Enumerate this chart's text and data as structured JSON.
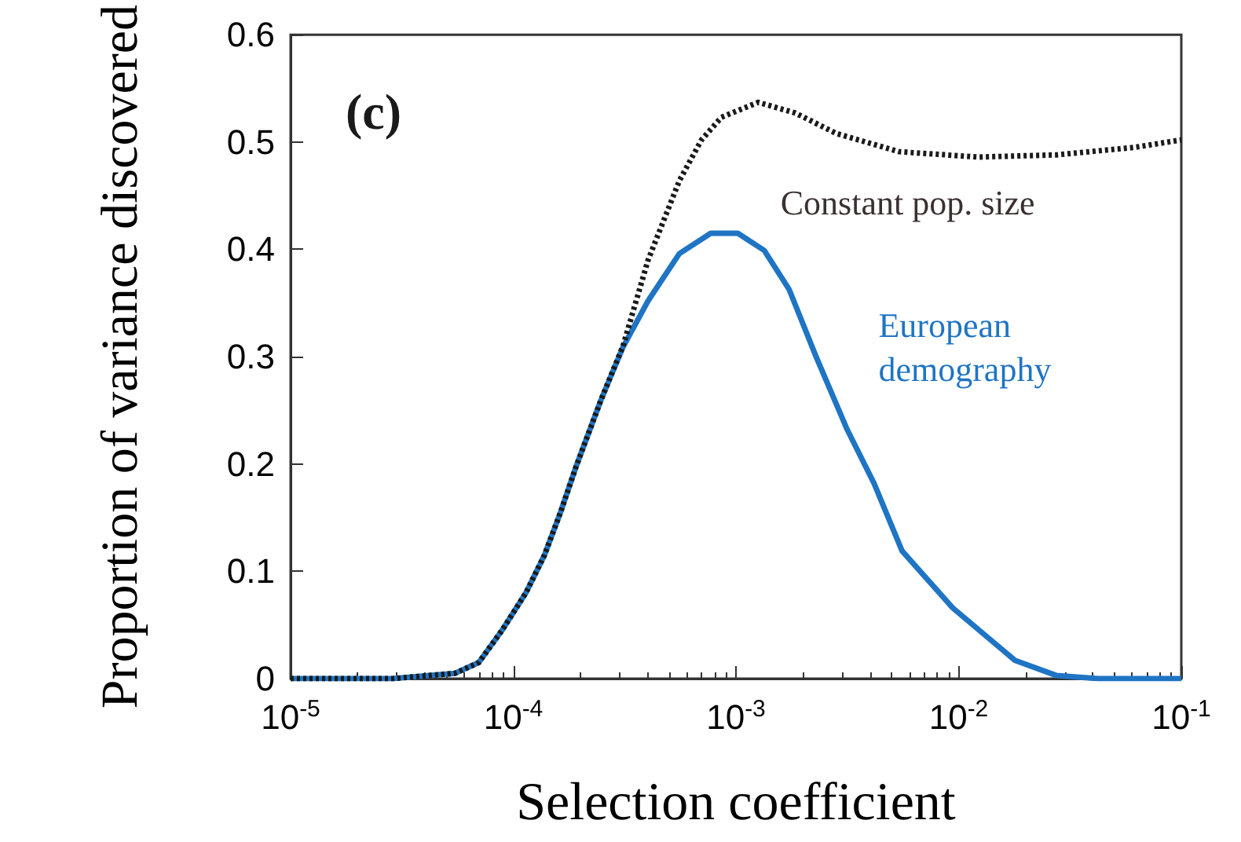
{
  "chart_data": {
    "type": "line",
    "xlabel": "Selection coefficient",
    "ylabel": "Proportion of variance discovered",
    "annotations": [
      "(c)"
    ],
    "log": "x",
    "xlim": [
      1e-05,
      0.1
    ],
    "ylim": [
      0,
      0.6
    ],
    "xticks": [
      {
        "value": 1e-05,
        "label": "10$^{-5}$"
      },
      {
        "value": 0.0001,
        "label": "10$^{-4}$"
      },
      {
        "value": 0.001,
        "label": "10$^{-3}$"
      },
      {
        "value": 0.01,
        "label": "10$^{-2}$"
      },
      {
        "value": 0.1,
        "label": "10$^{-1}$"
      }
    ],
    "yticks": [
      0,
      0.1,
      0.2,
      0.3,
      0.4,
      0.5,
      0.6
    ],
    "grid": false,
    "marker": "none",
    "series": [
      {
        "name": "Constant pop. size",
        "color": "#1a1a1a",
        "line_style": "dotted",
        "x": [
          1e-05,
          2.87e-05,
          5.48e-05,
          7e-05,
          8.9e-05,
          0.000114,
          0.000138,
          0.000163,
          0.000191,
          0.000248,
          0.000311,
          0.000403,
          0.000557,
          0.0007,
          0.00086,
          0.00126,
          0.00185,
          0.00282,
          0.0054,
          0.0122,
          0.0274,
          0.0615,
          0.1
        ],
        "values": [
          0,
          0,
          0.005,
          0.015,
          0.045,
          0.08,
          0.115,
          0.155,
          0.197,
          0.26,
          0.31,
          0.39,
          0.464,
          0.502,
          0.523,
          0.537,
          0.527,
          0.508,
          0.491,
          0.486,
          0.488,
          0.495,
          0.502
        ]
      },
      {
        "name": "European demography",
        "color": "#1f74c4",
        "line_style": "solid",
        "x": [
          1e-05,
          2.87e-05,
          5.48e-05,
          7e-05,
          8.9e-05,
          0.000114,
          0.000138,
          0.000163,
          0.000191,
          0.000248,
          0.000311,
          0.000403,
          0.000557,
          0.00077,
          0.00102,
          0.00134,
          0.00173,
          0.00229,
          0.00316,
          0.00417,
          0.00557,
          0.0094,
          0.0179,
          0.0274,
          0.0424,
          0.1
        ],
        "values": [
          0,
          0,
          0.005,
          0.015,
          0.045,
          0.08,
          0.115,
          0.155,
          0.197,
          0.26,
          0.309,
          0.352,
          0.396,
          0.415,
          0.415,
          0.399,
          0.363,
          0.3,
          0.232,
          0.182,
          0.119,
          0.066,
          0.017,
          0.003,
          0,
          0
        ]
      }
    ]
  }
}
